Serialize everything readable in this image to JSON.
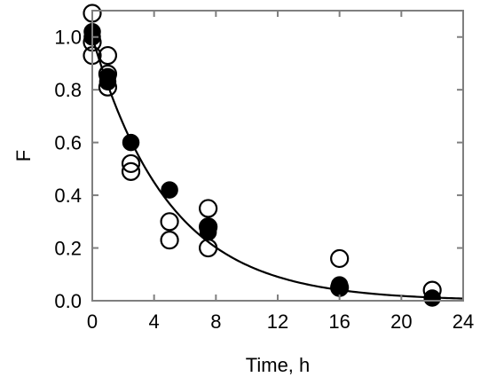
{
  "chart_data": {
    "type": "scatter",
    "title": "",
    "xlabel": "Time, h",
    "ylabel": "F",
    "xlim": [
      0,
      24
    ],
    "ylim": [
      0,
      1.1
    ],
    "x_ticks": [
      "0",
      "4",
      "8",
      "12",
      "16",
      "20",
      "24"
    ],
    "y_ticks": [
      "0.0",
      "0.2",
      "0.4",
      "0.6",
      "0.8",
      "1.0"
    ],
    "x_tick_values": [
      0,
      4,
      8,
      12,
      16,
      20,
      24
    ],
    "y_tick_values": [
      0,
      0.2,
      0.4,
      0.6,
      0.8,
      1.0
    ],
    "grid": false,
    "legend": "none",
    "series": [
      {
        "marker": "open-circle",
        "color": "#000000",
        "points": [
          {
            "x": 0,
            "y": 1.09
          },
          {
            "x": 0,
            "y": 0.98
          },
          {
            "x": 0,
            "y": 0.93
          },
          {
            "x": 1,
            "y": 0.93
          },
          {
            "x": 1,
            "y": 0.86
          },
          {
            "x": 1,
            "y": 0.81
          },
          {
            "x": 2.5,
            "y": 0.52
          },
          {
            "x": 2.5,
            "y": 0.49
          },
          {
            "x": 5,
            "y": 0.3
          },
          {
            "x": 5,
            "y": 0.23
          },
          {
            "x": 7.5,
            "y": 0.35
          },
          {
            "x": 7.5,
            "y": 0.28
          },
          {
            "x": 7.5,
            "y": 0.2
          },
          {
            "x": 16,
            "y": 0.16
          },
          {
            "x": 16,
            "y": 0.05
          },
          {
            "x": 22,
            "y": 0.04
          }
        ]
      },
      {
        "marker": "filled-circle",
        "color": "#000000",
        "points": [
          {
            "x": 0,
            "y": 1.02
          },
          {
            "x": 0,
            "y": 1.0
          },
          {
            "x": 1,
            "y": 0.85
          },
          {
            "x": 1,
            "y": 0.83
          },
          {
            "x": 2.5,
            "y": 0.6
          },
          {
            "x": 5,
            "y": 0.42
          },
          {
            "x": 7.5,
            "y": 0.28
          },
          {
            "x": 7.5,
            "y": 0.26
          },
          {
            "x": 16,
            "y": 0.06
          },
          {
            "x": 16,
            "y": 0.05
          },
          {
            "x": 22,
            "y": 0.01
          }
        ]
      }
    ],
    "fit_curve": {
      "type": "exponential-decay",
      "a": 1.0,
      "k": 0.2,
      "color": "#000000",
      "x_range": [
        0,
        24
      ]
    }
  }
}
